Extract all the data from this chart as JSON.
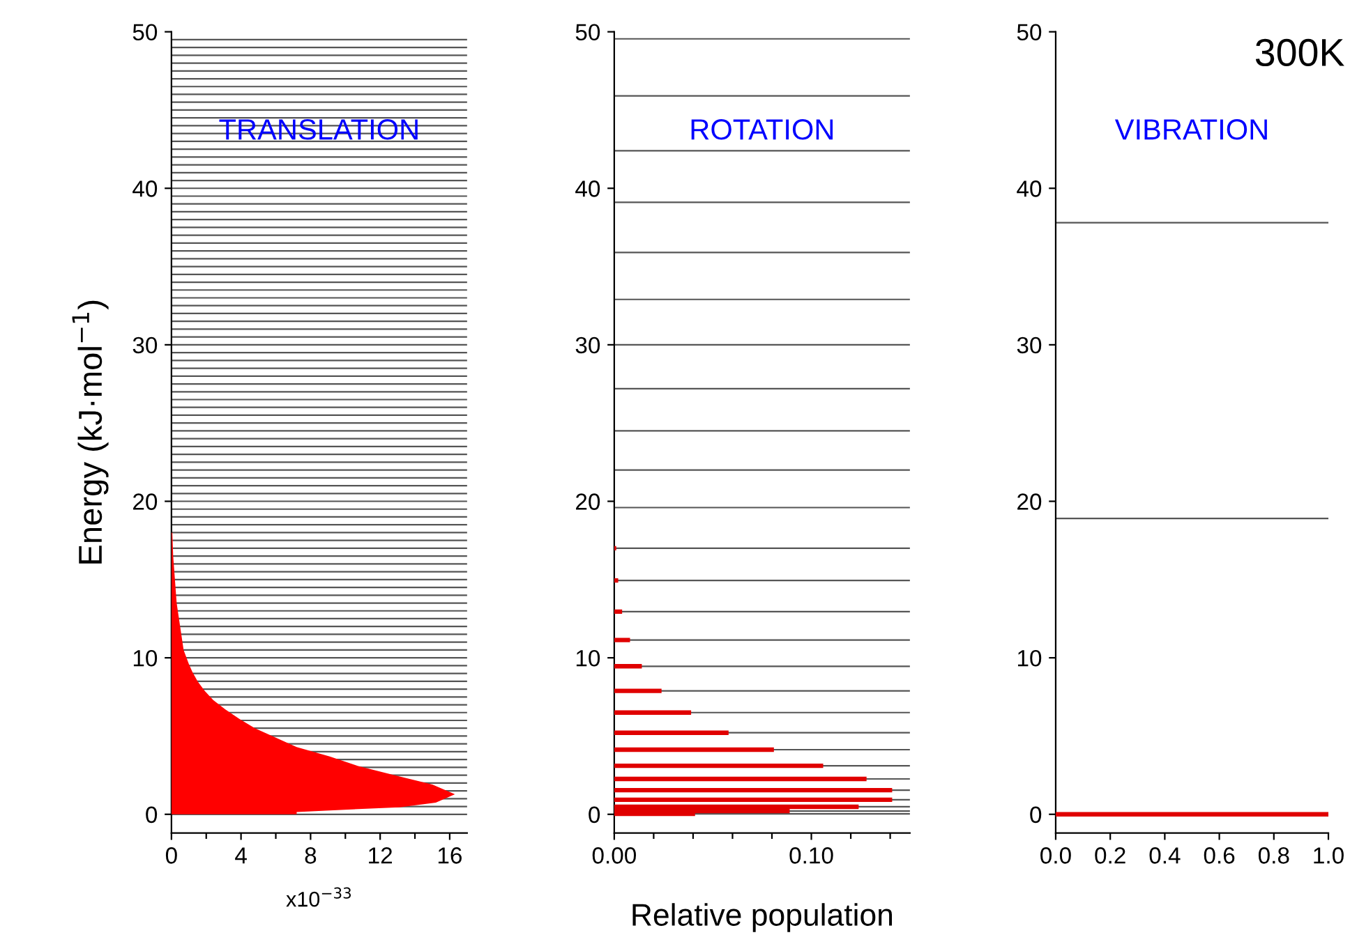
{
  "chart_data": [
    {
      "type": "area",
      "orientation": "horizontal",
      "title": "TRANSLATION",
      "ylabel": "Energy (kJ·mol$^{−1}$)",
      "annotations": [
        "x10$^{−33}$"
      ],
      "x": [
        0,
        0.15,
        0.45,
        0.75,
        1.28,
        1.9,
        2.5,
        3.1,
        3.7,
        4.3,
        4.9,
        5.5,
        6.1,
        6.7,
        7.3,
        7.9,
        8.5,
        9.1,
        9.6,
        10.5,
        12,
        13.5,
        15,
        16.5,
        18
      ],
      "series": [
        {
          "color": "#ff0000",
          "values": [
            7.2,
            7.2,
            13.1,
            15.2,
            16.3,
            15,
            12.8,
            10.7,
            9.1,
            7.2,
            6,
            4.8,
            3.9,
            3.1,
            2.4,
            1.9,
            1.5,
            1.2,
            1.0,
            0.7,
            0.5,
            0.3,
            0.2,
            0.1,
            0.05
          ]
        }
      ],
      "xlim": [
        0,
        17
      ],
      "xticks": [
        0,
        {
          "value": 2,
          "label": null
        },
        4,
        {
          "value": 6,
          "label": null
        },
        8,
        {
          "value": 10,
          "label": null
        },
        12,
        {
          "value": 14,
          "label": null
        },
        16
      ],
      "ylim": [
        -1.2,
        50
      ],
      "yticks": [
        0,
        10,
        20,
        30,
        40,
        50
      ],
      "legend": false,
      "ref_lines": [
        {
          "axis": "y",
          "value": 0
        },
        {
          "axis": "y",
          "value": 0.5
        },
        {
          "axis": "y",
          "value": 1
        },
        {
          "axis": "y",
          "value": 1.5
        },
        {
          "axis": "y",
          "value": 2
        },
        {
          "axis": "y",
          "value": 2.5
        },
        {
          "axis": "y",
          "value": 3
        },
        {
          "axis": "y",
          "value": 3.5
        },
        {
          "axis": "y",
          "value": 4
        },
        {
          "axis": "y",
          "value": 4.5
        },
        {
          "axis": "y",
          "value": 5
        },
        {
          "axis": "y",
          "value": 5.5
        },
        {
          "axis": "y",
          "value": 6
        },
        {
          "axis": "y",
          "value": 6.5
        },
        {
          "axis": "y",
          "value": 7
        },
        {
          "axis": "y",
          "value": 7.5
        },
        {
          "axis": "y",
          "value": 8
        },
        {
          "axis": "y",
          "value": 8.5
        },
        {
          "axis": "y",
          "value": 9
        },
        {
          "axis": "y",
          "value": 9.5
        },
        {
          "axis": "y",
          "value": 10
        },
        {
          "axis": "y",
          "value": 10.5
        },
        {
          "axis": "y",
          "value": 11
        },
        {
          "axis": "y",
          "value": 11.5
        },
        {
          "axis": "y",
          "value": 12
        },
        {
          "axis": "y",
          "value": 12.5
        },
        {
          "axis": "y",
          "value": 13
        },
        {
          "axis": "y",
          "value": 13.5
        },
        {
          "axis": "y",
          "value": 14
        },
        {
          "axis": "y",
          "value": 14.5
        },
        {
          "axis": "y",
          "value": 15
        },
        {
          "axis": "y",
          "value": 15.5
        },
        {
          "axis": "y",
          "value": 16
        },
        {
          "axis": "y",
          "value": 16.5
        },
        {
          "axis": "y",
          "value": 17
        },
        {
          "axis": "y",
          "value": 17.5
        },
        {
          "axis": "y",
          "value": 18
        },
        {
          "axis": "y",
          "value": 18.5
        },
        {
          "axis": "y",
          "value": 19
        },
        {
          "axis": "y",
          "value": 19.5
        },
        {
          "axis": "y",
          "value": 20
        },
        {
          "axis": "y",
          "value": 20.5
        },
        {
          "axis": "y",
          "value": 21
        },
        {
          "axis": "y",
          "value": 21.5
        },
        {
          "axis": "y",
          "value": 22
        },
        {
          "axis": "y",
          "value": 22.5
        },
        {
          "axis": "y",
          "value": 23
        },
        {
          "axis": "y",
          "value": 23.5
        },
        {
          "axis": "y",
          "value": 24
        },
        {
          "axis": "y",
          "value": 24.5
        },
        {
          "axis": "y",
          "value": 25
        },
        {
          "axis": "y",
          "value": 25.5
        },
        {
          "axis": "y",
          "value": 26
        },
        {
          "axis": "y",
          "value": 26.5
        },
        {
          "axis": "y",
          "value": 27
        },
        {
          "axis": "y",
          "value": 27.5
        },
        {
          "axis": "y",
          "value": 28
        },
        {
          "axis": "y",
          "value": 28.5
        },
        {
          "axis": "y",
          "value": 29
        },
        {
          "axis": "y",
          "value": 29.5
        },
        {
          "axis": "y",
          "value": 30
        },
        {
          "axis": "y",
          "value": 30.5
        },
        {
          "axis": "y",
          "value": 31
        },
        {
          "axis": "y",
          "value": 31.5
        },
        {
          "axis": "y",
          "value": 32
        },
        {
          "axis": "y",
          "value": 32.5
        },
        {
          "axis": "y",
          "value": 33
        },
        {
          "axis": "y",
          "value": 33.5
        },
        {
          "axis": "y",
          "value": 34
        },
        {
          "axis": "y",
          "value": 34.5
        },
        {
          "axis": "y",
          "value": 35
        },
        {
          "axis": "y",
          "value": 35.5
        },
        {
          "axis": "y",
          "value": 36
        },
        {
          "axis": "y",
          "value": 36.5
        },
        {
          "axis": "y",
          "value": 37
        },
        {
          "axis": "y",
          "value": 37.5
        },
        {
          "axis": "y",
          "value": 38
        },
        {
          "axis": "y",
          "value": 38.5
        },
        {
          "axis": "y",
          "value": 39
        },
        {
          "axis": "y",
          "value": 39.5
        },
        {
          "axis": "y",
          "value": 40
        },
        {
          "axis": "y",
          "value": 40.5
        },
        {
          "axis": "y",
          "value": 41
        },
        {
          "axis": "y",
          "value": 41.5
        },
        {
          "axis": "y",
          "value": 42
        },
        {
          "axis": "y",
          "value": 42.5
        },
        {
          "axis": "y",
          "value": 43
        },
        {
          "axis": "y",
          "value": 43.5
        },
        {
          "axis": "y",
          "value": 44
        },
        {
          "axis": "y",
          "value": 44.5
        },
        {
          "axis": "y",
          "value": 45
        },
        {
          "axis": "y",
          "value": 45.5
        },
        {
          "axis": "y",
          "value": 46
        },
        {
          "axis": "y",
          "value": 46.5
        },
        {
          "axis": "y",
          "value": 47
        },
        {
          "axis": "y",
          "value": 47.5
        },
        {
          "axis": "y",
          "value": 48
        },
        {
          "axis": "y",
          "value": 48.5
        },
        {
          "axis": "y",
          "value": 49
        },
        {
          "axis": "y",
          "value": 49.5
        }
      ]
    },
    {
      "type": "bar",
      "orientation": "horizontal",
      "title": "ROTATION",
      "xlabel": "Relative population",
      "x": [
        0.03,
        0.21,
        0.48,
        0.93,
        1.54,
        2.26,
        3.1,
        4.13,
        5.21,
        6.5,
        7.89,
        9.46,
        11.14,
        12.95,
        14.94,
        17.0
      ],
      "series": [
        {
          "color": "#e00000",
          "values": [
            0.041,
            0.089,
            0.124,
            0.141,
            0.141,
            0.128,
            0.106,
            0.081,
            0.058,
            0.039,
            0.024,
            0.014,
            0.008,
            0.004,
            0.002,
            0.001
          ]
        }
      ],
      "xlim": [
        0,
        0.15
      ],
      "xticks": [
        {
          "value": 0,
          "label": "0.00"
        },
        {
          "value": 0.02,
          "label": null
        },
        {
          "value": 0.04,
          "label": null
        },
        {
          "value": 0.06,
          "label": null
        },
        {
          "value": 0.08,
          "label": null
        },
        {
          "value": 0.1,
          "label": "0.10"
        },
        {
          "value": 0.12,
          "label": null
        },
        {
          "value": 0.14,
          "label": null
        }
      ],
      "ylim": [
        -1.2,
        50
      ],
      "yticks": [
        0,
        10,
        20,
        30,
        40,
        50
      ],
      "legend": false,
      "ref_lines": [
        {
          "axis": "y",
          "value": 0.03
        },
        {
          "axis": "y",
          "value": 0.21
        },
        {
          "axis": "y",
          "value": 0.48
        },
        {
          "axis": "y",
          "value": 0.93
        },
        {
          "axis": "y",
          "value": 1.54
        },
        {
          "axis": "y",
          "value": 2.26
        },
        {
          "axis": "y",
          "value": 3.1
        },
        {
          "axis": "y",
          "value": 4.13
        },
        {
          "axis": "y",
          "value": 5.21
        },
        {
          "axis": "y",
          "value": 6.5
        },
        {
          "axis": "y",
          "value": 7.89
        },
        {
          "axis": "y",
          "value": 9.46
        },
        {
          "axis": "y",
          "value": 11.14
        },
        {
          "axis": "y",
          "value": 12.95
        },
        {
          "axis": "y",
          "value": 14.94
        },
        {
          "axis": "y",
          "value": 17.0
        },
        {
          "axis": "y",
          "value": 19.6
        },
        {
          "axis": "y",
          "value": 22.0
        },
        {
          "axis": "y",
          "value": 24.5
        },
        {
          "axis": "y",
          "value": 27.2
        },
        {
          "axis": "y",
          "value": 30.0
        },
        {
          "axis": "y",
          "value": 32.9
        },
        {
          "axis": "y",
          "value": 35.9
        },
        {
          "axis": "y",
          "value": 39.1
        },
        {
          "axis": "y",
          "value": 42.4
        },
        {
          "axis": "y",
          "value": 45.9
        },
        {
          "axis": "y",
          "value": 49.55
        }
      ]
    },
    {
      "type": "bar",
      "orientation": "horizontal",
      "title": "VIBRATION",
      "annotations": [
        "300K"
      ],
      "x": [
        0
      ],
      "series": [
        {
          "color": "#e00000",
          "values": [
            1.0
          ]
        }
      ],
      "xlim": [
        0,
        1.0
      ],
      "xticks": [
        {
          "value": 0,
          "label": "0.0"
        },
        {
          "value": 0.2,
          "label": "0.2"
        },
        {
          "value": 0.4,
          "label": "0.4"
        },
        {
          "value": 0.6,
          "label": "0.6"
        },
        {
          "value": 0.8,
          "label": "0.8"
        },
        {
          "value": 1.0,
          "label": "1.0"
        }
      ],
      "ylim": [
        -1.2,
        50
      ],
      "yticks": [
        0,
        10,
        20,
        30,
        40,
        50
      ],
      "legend": false,
      "ref_lines": [
        {
          "axis": "y",
          "value": 18.9
        },
        {
          "axis": "y",
          "value": 37.8
        }
      ]
    }
  ]
}
